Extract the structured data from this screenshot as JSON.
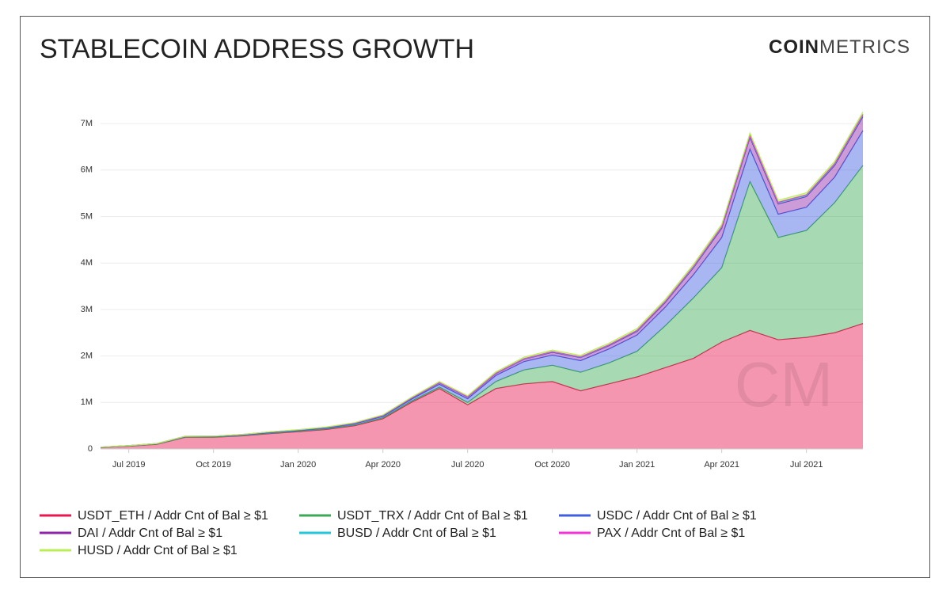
{
  "chart_data": {
    "type": "stacked-area",
    "title": "STABLECOIN ADDRESS GROWTH",
    "logo_bold": "COIN",
    "logo_light": "METRICS",
    "watermark": "CM",
    "x": [
      "2019-06",
      "2019-07",
      "2019-08",
      "2019-09",
      "2019-10",
      "2019-11",
      "2019-12",
      "2020-01",
      "2020-02",
      "2020-03",
      "2020-04",
      "2020-05",
      "2020-06",
      "2020-07",
      "2020-08",
      "2020-09",
      "2020-10",
      "2020-11",
      "2020-12",
      "2021-01",
      "2021-02",
      "2021-03",
      "2021-04",
      "2021-05",
      "2021-06",
      "2021-07",
      "2021-08",
      "2021-09"
    ],
    "xticks": [
      {
        "value": "2019-07",
        "label": "Jul 2019"
      },
      {
        "value": "2019-10",
        "label": "Oct 2019"
      },
      {
        "value": "2020-01",
        "label": "Jan 2020"
      },
      {
        "value": "2020-04",
        "label": "Apr 2020"
      },
      {
        "value": "2020-07",
        "label": "Jul 2020"
      },
      {
        "value": "2020-10",
        "label": "Oct 2020"
      },
      {
        "value": "2021-01",
        "label": "Jan 2021"
      },
      {
        "value": "2021-04",
        "label": "Apr 2021"
      },
      {
        "value": "2021-07",
        "label": "Jul 2021"
      }
    ],
    "ylim": [
      0,
      7500000
    ],
    "yticks": [
      0,
      {
        "value": 1000000,
        "label": "1M"
      },
      {
        "value": 2000000,
        "label": "2M"
      },
      {
        "value": 3000000,
        "label": "3M"
      },
      {
        "value": 4000000,
        "label": "4M"
      },
      {
        "value": 5000000,
        "label": "5M"
      },
      {
        "value": 6000000,
        "label": "6M"
      },
      {
        "value": 7000000,
        "label": "7M"
      }
    ],
    "grid": true,
    "legend": "bottom",
    "series": [
      {
        "name": "USDT_ETH / Addr Cnt of Bal ≥ $1",
        "color": "#e8174f",
        "values": [
          30000,
          60000,
          100000,
          250000,
          250000,
          280000,
          330000,
          370000,
          420000,
          500000,
          650000,
          1000000,
          1300000,
          950000,
          1300000,
          1400000,
          1450000,
          1250000,
          1400000,
          1550000,
          1750000,
          1950000,
          2300000,
          2550000,
          2350000,
          2400000,
          2500000,
          2700000
        ]
      },
      {
        "name": "USDT_TRX / Addr Cnt of Bal ≥ $1",
        "color": "#3caa54",
        "values": [
          1000,
          2000,
          3000,
          5000,
          5000,
          6000,
          8000,
          10000,
          12000,
          15000,
          20000,
          25000,
          30000,
          50000,
          150000,
          300000,
          350000,
          400000,
          450000,
          550000,
          900000,
          1300000,
          1600000,
          3200000,
          2200000,
          2300000,
          2800000,
          3400000
        ]
      },
      {
        "name": "USDC / Addr Cnt of Bal ≥ $1",
        "color": "#3f5fe0",
        "values": [
          5000,
          6000,
          8000,
          10000,
          12000,
          14000,
          16000,
          18000,
          20000,
          25000,
          30000,
          40000,
          60000,
          80000,
          130000,
          180000,
          220000,
          250000,
          300000,
          350000,
          400000,
          500000,
          650000,
          700000,
          500000,
          500000,
          550000,
          750000
        ]
      },
      {
        "name": "DAI / Addr Cnt of Bal ≥ $1",
        "color": "#8e24aa",
        "values": [
          2000,
          3000,
          4000,
          5000,
          6000,
          7000,
          8000,
          9000,
          10000,
          12000,
          15000,
          20000,
          30000,
          35000,
          40000,
          50000,
          60000,
          65000,
          70000,
          80000,
          100000,
          150000,
          200000,
          250000,
          220000,
          230000,
          250000,
          300000
        ]
      },
      {
        "name": "BUSD / Addr Cnt of Bal ≥ $1",
        "color": "#26c6da",
        "values": [
          0,
          0,
          0,
          1000,
          1000,
          1000,
          2000,
          2000,
          2000,
          3000,
          3000,
          4000,
          5000,
          5000,
          6000,
          8000,
          10000,
          10000,
          12000,
          15000,
          18000,
          20000,
          25000,
          30000,
          25000,
          25000,
          28000,
          30000
        ]
      },
      {
        "name": "PAX / Addr Cnt of Bal ≥ $1",
        "color": "#f233d6",
        "values": [
          1000,
          1000,
          2000,
          2000,
          2000,
          3000,
          3000,
          3000,
          4000,
          4000,
          5000,
          5000,
          6000,
          6000,
          7000,
          8000,
          8000,
          9000,
          10000,
          10000,
          12000,
          14000,
          15000,
          18000,
          16000,
          16000,
          18000,
          20000
        ]
      },
      {
        "name": "HUSD / Addr Cnt of Bal ≥ $1",
        "color": "#b9ef55",
        "values": [
          0,
          0,
          0,
          0,
          0,
          1000,
          2000,
          3000,
          5000,
          8000,
          10000,
          15000,
          20000,
          20000,
          25000,
          28000,
          30000,
          30000,
          32000,
          35000,
          38000,
          40000,
          45000,
          50000,
          40000,
          40000,
          45000,
          50000
        ]
      }
    ]
  }
}
